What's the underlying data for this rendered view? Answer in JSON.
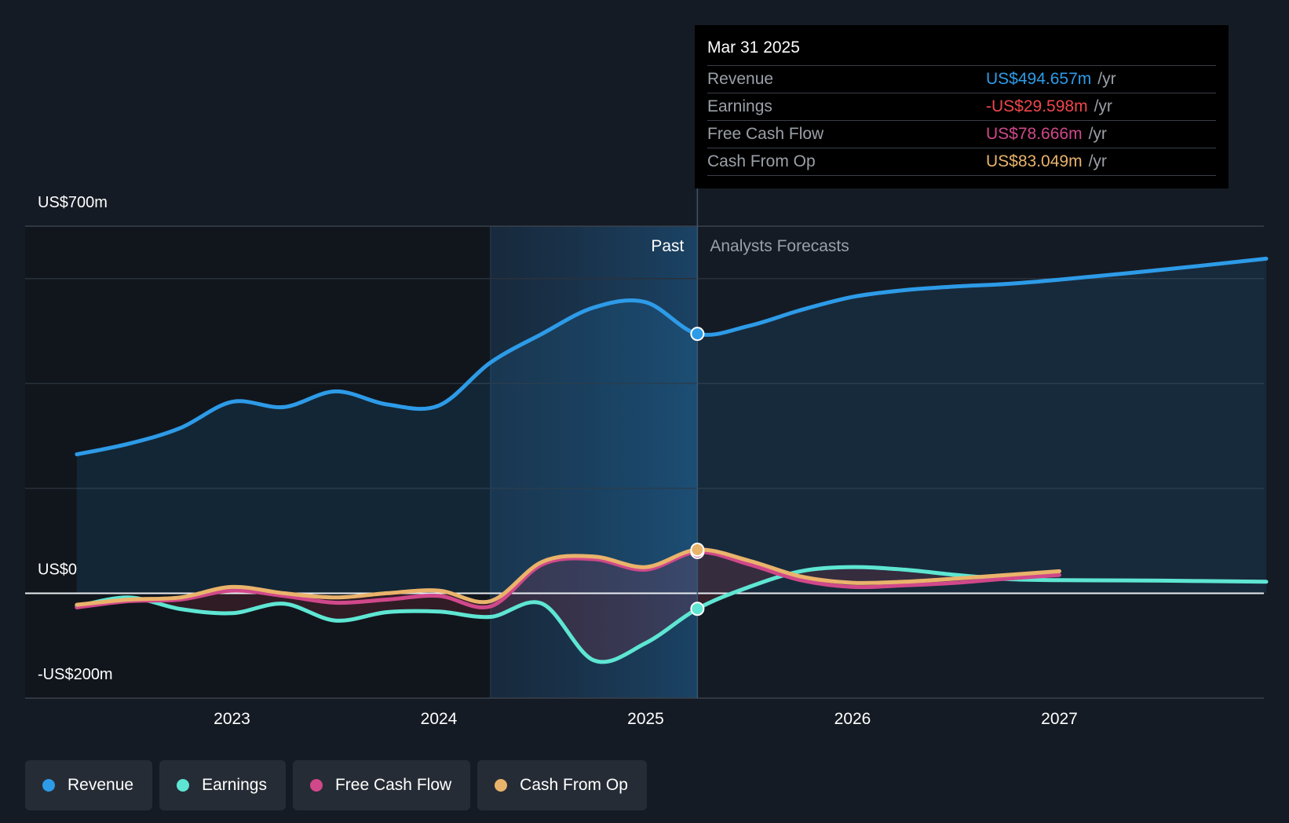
{
  "tooltip": {
    "date": "Mar 31 2025",
    "rows": [
      {
        "label": "Revenue",
        "value": "US$494.657m",
        "unit": "/yr",
        "color": "#2d9be8"
      },
      {
        "label": "Earnings",
        "value": "-US$29.598m",
        "unit": "/yr",
        "color": "#f0464b"
      },
      {
        "label": "Free Cash Flow",
        "value": "US$78.666m",
        "unit": "/yr",
        "color": "#d0488a"
      },
      {
        "label": "Cash From Op",
        "value": "US$83.049m",
        "unit": "/yr",
        "color": "#eab36b"
      }
    ]
  },
  "legend": [
    {
      "label": "Revenue",
      "color": "#2d9be8"
    },
    {
      "label": "Earnings",
      "color": "#5ee6d3"
    },
    {
      "label": "Free Cash Flow",
      "color": "#d0488a"
    },
    {
      "label": "Cash From Op",
      "color": "#eab36b"
    }
  ],
  "chart_data": {
    "type": "line",
    "y_labels": [
      "US$700m",
      "US$0",
      "-US$200m"
    ],
    "ylim": [
      -200,
      700
    ],
    "xlim": [
      2022.0,
      2028.0
    ],
    "x_ticks": [
      "2023",
      "2024",
      "2025",
      "2026",
      "2027"
    ],
    "x_tick_values": [
      2023,
      2024,
      2025,
      2026,
      2027
    ],
    "past_label": "Past",
    "forecast_label": "Analysts Forecasts",
    "past_region_start": 2024.25,
    "past_end": 2025.25,
    "series": [
      {
        "name": "Revenue",
        "color": "#2d9be8",
        "points": [
          [
            2022.25,
            265
          ],
          [
            2022.5,
            285
          ],
          [
            2022.75,
            315
          ],
          [
            2023.0,
            365
          ],
          [
            2023.25,
            355
          ],
          [
            2023.5,
            385
          ],
          [
            2023.75,
            360
          ],
          [
            2024.0,
            358
          ],
          [
            2024.25,
            440
          ],
          [
            2024.5,
            495
          ],
          [
            2024.75,
            545
          ],
          [
            2025.0,
            555
          ],
          [
            2025.25,
            494.657
          ],
          [
            2025.5,
            510
          ],
          [
            2025.75,
            540
          ],
          [
            2026.0,
            565
          ],
          [
            2026.25,
            578
          ],
          [
            2026.5,
            585
          ],
          [
            2026.75,
            590
          ],
          [
            2027.0,
            598
          ],
          [
            2027.5,
            617
          ],
          [
            2028.0,
            638
          ]
        ]
      },
      {
        "name": "Earnings",
        "color": "#5ee6d3",
        "points": [
          [
            2022.25,
            -25
          ],
          [
            2022.5,
            -8
          ],
          [
            2022.75,
            -30
          ],
          [
            2023.0,
            -38
          ],
          [
            2023.25,
            -20
          ],
          [
            2023.5,
            -52
          ],
          [
            2023.75,
            -36
          ],
          [
            2024.0,
            -35
          ],
          [
            2024.25,
            -45
          ],
          [
            2024.5,
            -20
          ],
          [
            2024.75,
            -128
          ],
          [
            2025.0,
            -95
          ],
          [
            2025.25,
            -29.598
          ],
          [
            2025.5,
            12
          ],
          [
            2025.75,
            42
          ],
          [
            2026.0,
            50
          ],
          [
            2026.25,
            45
          ],
          [
            2026.5,
            35
          ],
          [
            2026.75,
            27
          ],
          [
            2027.0,
            25
          ],
          [
            2027.5,
            24
          ],
          [
            2028.0,
            22
          ]
        ]
      },
      {
        "name": "Free Cash Flow",
        "color": "#d0488a",
        "points": [
          [
            2022.25,
            -27
          ],
          [
            2022.5,
            -15
          ],
          [
            2022.75,
            -12
          ],
          [
            2023.0,
            5
          ],
          [
            2023.25,
            -5
          ],
          [
            2023.5,
            -18
          ],
          [
            2023.75,
            -12
          ],
          [
            2024.0,
            -5
          ],
          [
            2024.25,
            -25
          ],
          [
            2024.5,
            55
          ],
          [
            2024.75,
            65
          ],
          [
            2025.0,
            45
          ],
          [
            2025.25,
            78.666
          ],
          [
            2025.5,
            55
          ],
          [
            2025.75,
            25
          ],
          [
            2026.0,
            12
          ],
          [
            2026.25,
            15
          ],
          [
            2026.5,
            20
          ],
          [
            2026.75,
            28
          ],
          [
            2027.0,
            35
          ]
        ]
      },
      {
        "name": "Cash From Op",
        "color": "#eab36b",
        "points": [
          [
            2022.25,
            -22
          ],
          [
            2022.5,
            -12
          ],
          [
            2022.75,
            -8
          ],
          [
            2023.0,
            12
          ],
          [
            2023.25,
            0
          ],
          [
            2023.5,
            -8
          ],
          [
            2023.75,
            0
          ],
          [
            2024.0,
            5
          ],
          [
            2024.25,
            -15
          ],
          [
            2024.5,
            60
          ],
          [
            2024.75,
            70
          ],
          [
            2025.0,
            50
          ],
          [
            2025.25,
            83.049
          ],
          [
            2025.5,
            62
          ],
          [
            2025.75,
            32
          ],
          [
            2026.0,
            20
          ],
          [
            2026.25,
            22
          ],
          [
            2026.5,
            28
          ],
          [
            2026.75,
            35
          ],
          [
            2027.0,
            42
          ]
        ]
      }
    ]
  }
}
